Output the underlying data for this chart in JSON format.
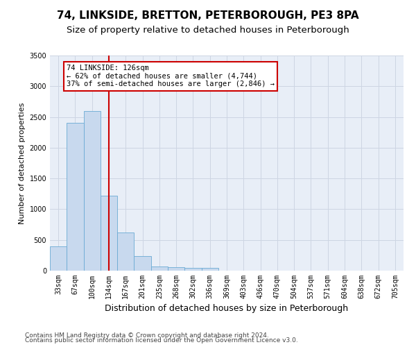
{
  "title": "74, LINKSIDE, BRETTON, PETERBOROUGH, PE3 8PA",
  "subtitle": "Size of property relative to detached houses in Peterborough",
  "xlabel": "Distribution of detached houses by size in Peterborough",
  "ylabel": "Number of detached properties",
  "categories": [
    "33sqm",
    "67sqm",
    "100sqm",
    "134sqm",
    "167sqm",
    "201sqm",
    "235sqm",
    "268sqm",
    "302sqm",
    "336sqm",
    "369sqm",
    "403sqm",
    "436sqm",
    "470sqm",
    "504sqm",
    "537sqm",
    "571sqm",
    "604sqm",
    "638sqm",
    "672sqm",
    "705sqm"
  ],
  "values": [
    400,
    2400,
    2600,
    1220,
    620,
    240,
    70,
    60,
    50,
    40,
    5,
    4,
    3,
    2,
    1,
    1,
    0,
    0,
    0,
    0,
    0
  ],
  "bar_color": "#c8d9ee",
  "bar_edge_color": "#6aaad4",
  "red_line_index": 3,
  "annotation_line1": "74 LINKSIDE: 126sqm",
  "annotation_line2": "← 62% of detached houses are smaller (4,744)",
  "annotation_line3": "37% of semi-detached houses are larger (2,846) →",
  "annotation_box_color": "#ffffff",
  "annotation_box_edge": "#cc0000",
  "red_line_color": "#cc0000",
  "ylim": [
    0,
    3500
  ],
  "yticks": [
    0,
    500,
    1000,
    1500,
    2000,
    2500,
    3000,
    3500
  ],
  "grid_color": "#cdd5e3",
  "background_color": "#e8eef7",
  "footer_line1": "Contains HM Land Registry data © Crown copyright and database right 2024.",
  "footer_line2": "Contains public sector information licensed under the Open Government Licence v3.0.",
  "title_fontsize": 11,
  "subtitle_fontsize": 9.5,
  "xlabel_fontsize": 9,
  "ylabel_fontsize": 8,
  "tick_fontsize": 7,
  "footer_fontsize": 6.5
}
